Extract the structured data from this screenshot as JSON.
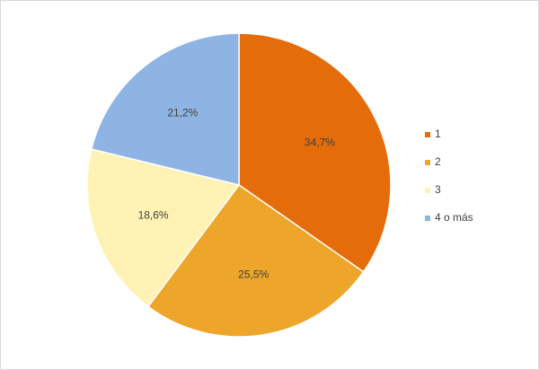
{
  "chart_data": {
    "type": "pie",
    "categories": [
      "1",
      "2",
      "3",
      "4 o más"
    ],
    "values": [
      34.7,
      25.5,
      18.6,
      21.2
    ],
    "value_labels": [
      "34,7%",
      "25,5%",
      "18,6%",
      "21,2%"
    ],
    "colors": [
      "#e46c0a",
      "#eda52a",
      "#fff2b5",
      "#8eb4e3"
    ],
    "legend": "right"
  }
}
